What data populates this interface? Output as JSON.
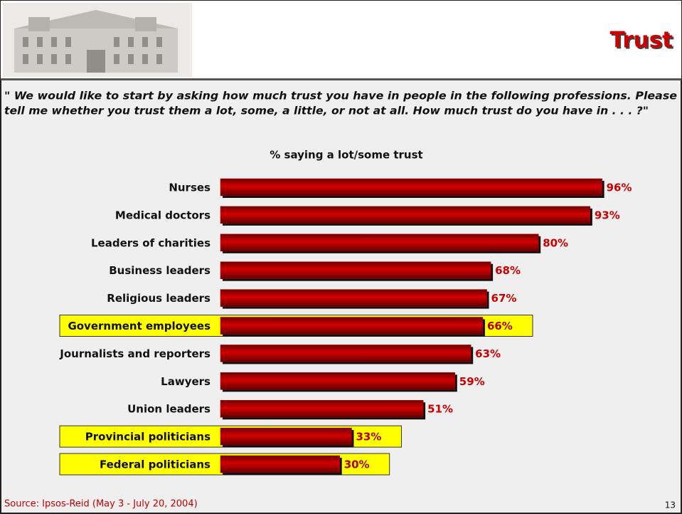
{
  "header": {
    "title": "Trust"
  },
  "question": [
    "\" We would like to start by asking how much trust you have in people in the following professions. Please",
    "tell me whether you trust them a lot, some, a little, or not at all. How much trust do you have in . . . ?\""
  ],
  "chart_data": {
    "type": "bar",
    "orientation": "horizontal",
    "title": "% saying a lot/some trust",
    "categories": [
      "Nurses",
      "Medical doctors",
      "Leaders of charities",
      "Business leaders",
      "Religious leaders",
      "Government employees",
      "Journalists and reporters",
      "Lawyers",
      "Union leaders",
      "Provincial politicians",
      "Federal politicians"
    ],
    "values": [
      96,
      93,
      80,
      68,
      67,
      66,
      63,
      59,
      51,
      33,
      30
    ],
    "value_labels": [
      "96%",
      "93%",
      "80%",
      "68%",
      "67%",
      "66%",
      "63%",
      "59%",
      "51%",
      "33%",
      "30%"
    ],
    "color": "#b00000",
    "highlight": [
      false,
      false,
      false,
      false,
      false,
      true,
      false,
      false,
      false,
      true,
      true
    ]
  },
  "footer": {
    "source": "Source: Ipsos-Reid (May 3 - July 20, 2004)",
    "page": "13"
  }
}
